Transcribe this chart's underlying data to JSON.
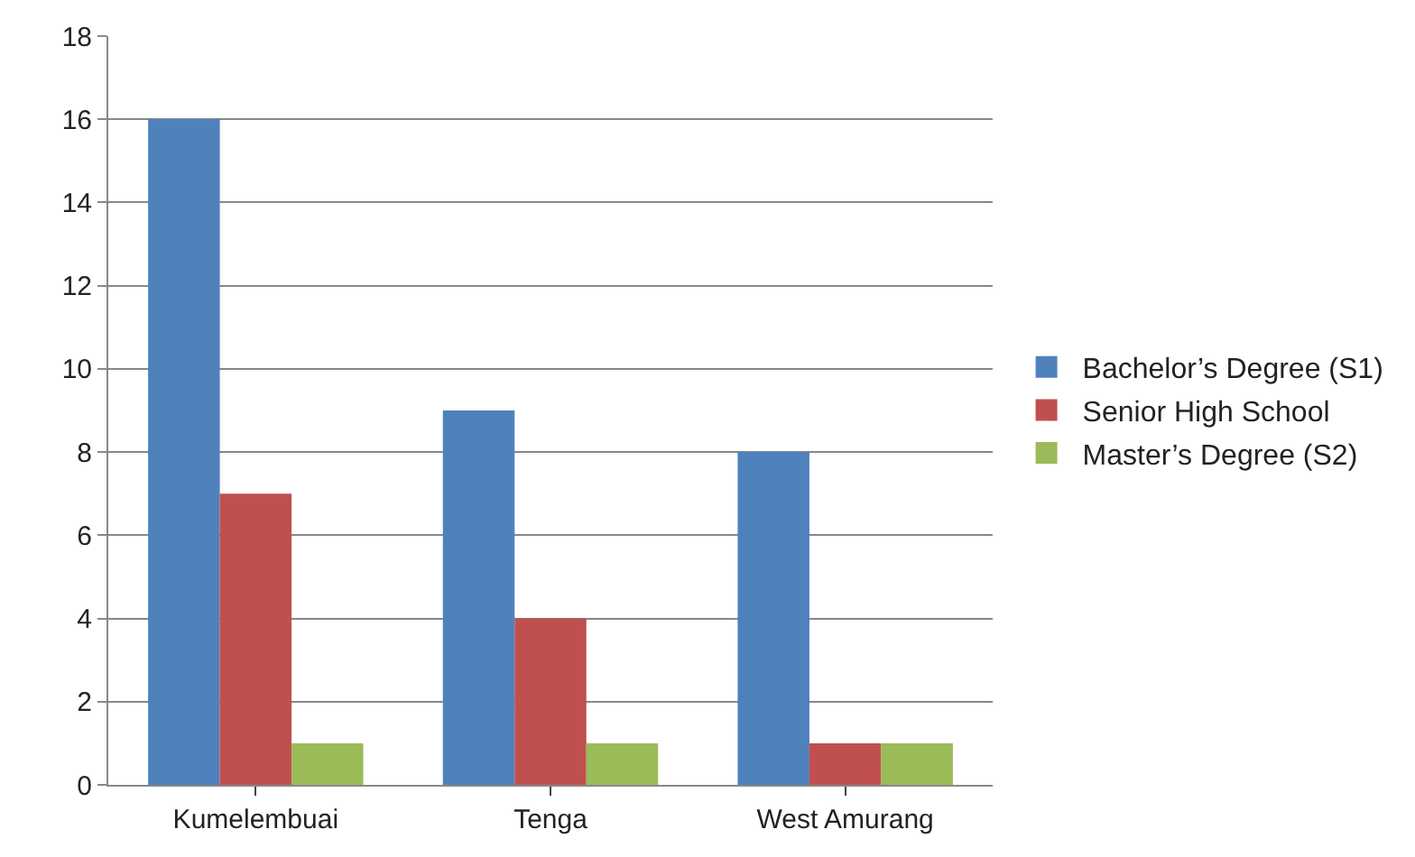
{
  "chart_data": {
    "type": "bar",
    "categories": [
      "Kumelembuai",
      "Tenga",
      "West Amurang"
    ],
    "series": [
      {
        "name": "Bachelor’s Degree (S1)",
        "color": "#4f81bd",
        "values": [
          16,
          9,
          8
        ]
      },
      {
        "name": "Senior High School",
        "color": "#c0504d",
        "values": [
          7,
          4,
          1
        ]
      },
      {
        "name": "Master’s Degree (S2)",
        "color": "#9bbb59",
        "values": [
          1,
          1,
          1
        ]
      }
    ],
    "ylim": [
      0,
      18
    ],
    "yticks": [
      0,
      2,
      4,
      6,
      8,
      10,
      12,
      14,
      16,
      18
    ],
    "grid": "y",
    "legend": "right"
  }
}
